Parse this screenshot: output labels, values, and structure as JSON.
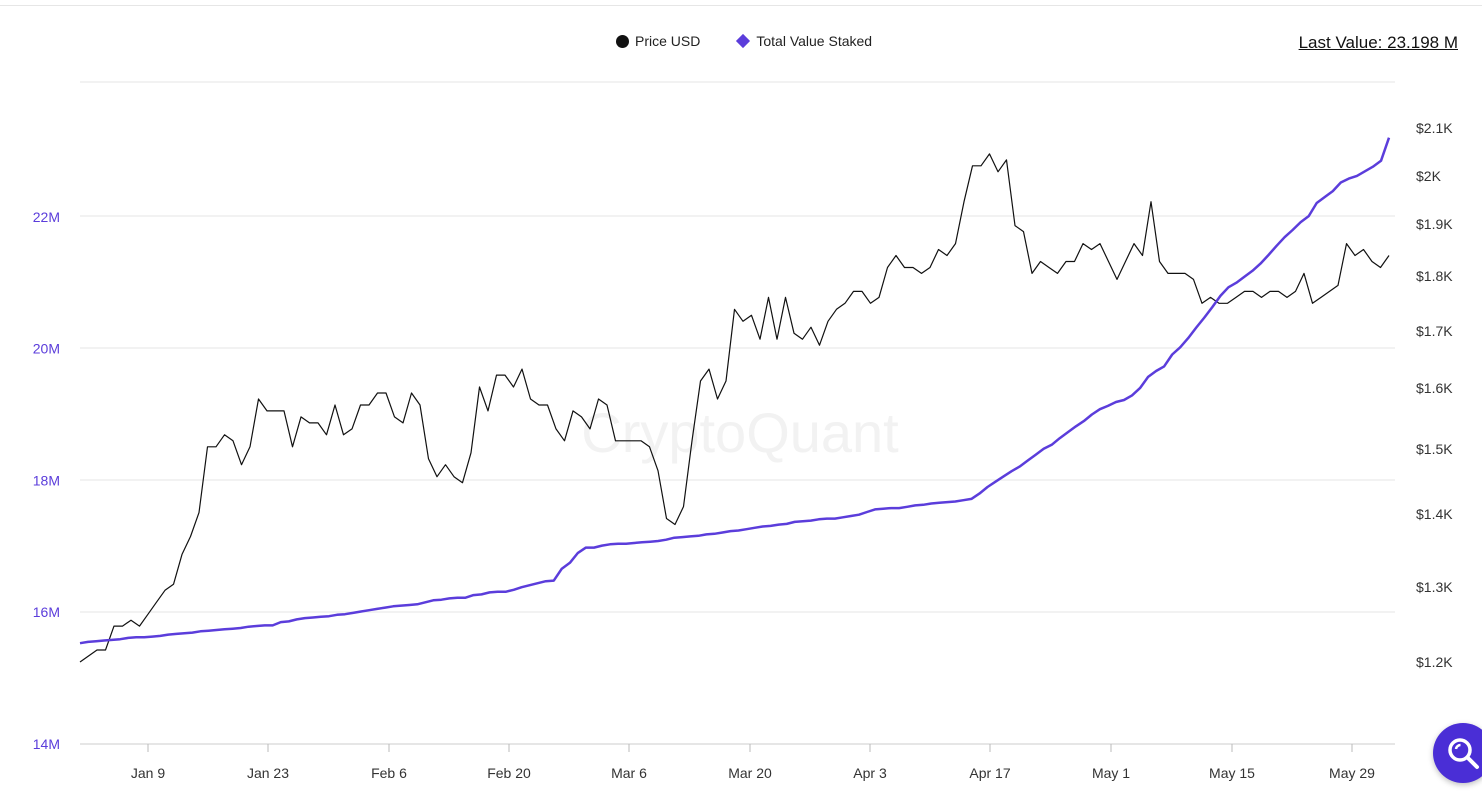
{
  "legend": {
    "price_label": "Price USD",
    "tvs_label": "Total Value Staked"
  },
  "last_value": "Last Value: 23.198 M",
  "watermark": "CryptoQuant",
  "colors": {
    "price": "#111111",
    "tvs": "#5b3ddb",
    "left_axis_text": "#5b3ddb",
    "right_axis_text": "#333333",
    "grid": "#e6e6e6"
  },
  "chart_data": {
    "type": "line",
    "x_ticks": [
      "Jan 9",
      "Jan 23",
      "Feb 6",
      "Feb 20",
      "Mar 6",
      "Mar 20",
      "Apr 3",
      "Apr 17",
      "May 1",
      "May 15",
      "May 29"
    ],
    "y_left_ticks": [
      "14M",
      "16M",
      "18M",
      "20M",
      "22M"
    ],
    "y_right_ticks": [
      "$1.2K",
      "$1.3K",
      "$1.4K",
      "$1.5K",
      "$1.6K",
      "$1.7K",
      "$1.8K",
      "$1.9K",
      "$2K",
      "$2.1K"
    ],
    "y_left_range": [
      14,
      24
    ],
    "y_right_range": [
      1.1,
      2.2
    ],
    "grid": true,
    "legend_position": "top-center",
    "series": [
      {
        "name": "Price USD",
        "axis": "right",
        "values": [
          1.2,
          1.21,
          1.22,
          1.22,
          1.26,
          1.26,
          1.27,
          1.26,
          1.28,
          1.3,
          1.32,
          1.33,
          1.38,
          1.41,
          1.45,
          1.56,
          1.56,
          1.58,
          1.57,
          1.53,
          1.56,
          1.64,
          1.62,
          1.62,
          1.62,
          1.56,
          1.61,
          1.6,
          1.6,
          1.58,
          1.63,
          1.58,
          1.59,
          1.63,
          1.63,
          1.65,
          1.65,
          1.61,
          1.6,
          1.65,
          1.63,
          1.54,
          1.51,
          1.53,
          1.51,
          1.5,
          1.55,
          1.66,
          1.62,
          1.68,
          1.68,
          1.66,
          1.69,
          1.64,
          1.63,
          1.63,
          1.59,
          1.57,
          1.62,
          1.61,
          1.59,
          1.64,
          1.63,
          1.57,
          1.57,
          1.57,
          1.57,
          1.56,
          1.52,
          1.44,
          1.43,
          1.46,
          1.57,
          1.67,
          1.69,
          1.64,
          1.67,
          1.79,
          1.77,
          1.78,
          1.74,
          1.81,
          1.74,
          1.81,
          1.75,
          1.74,
          1.76,
          1.73,
          1.77,
          1.79,
          1.8,
          1.82,
          1.82,
          1.8,
          1.81,
          1.86,
          1.88,
          1.86,
          1.86,
          1.85,
          1.86,
          1.89,
          1.88,
          1.9,
          1.97,
          2.03,
          2.03,
          2.05,
          2.02,
          2.04,
          1.93,
          1.92,
          1.85,
          1.87,
          1.86,
          1.85,
          1.87,
          1.87,
          1.9,
          1.89,
          1.9,
          1.87,
          1.84,
          1.87,
          1.9,
          1.88,
          1.97,
          1.87,
          1.85,
          1.85,
          1.85,
          1.84,
          1.8,
          1.81,
          1.8,
          1.8,
          1.81,
          1.82,
          1.82,
          1.81,
          1.82,
          1.82,
          1.81,
          1.82,
          1.85,
          1.8,
          1.81,
          1.82,
          1.83,
          1.9,
          1.88,
          1.89,
          1.87,
          1.86,
          1.88
        ]
      },
      {
        "name": "Total Value Staked",
        "axis": "left",
        "values": [
          15.53,
          15.55,
          15.56,
          15.57,
          15.58,
          15.59,
          15.61,
          15.62,
          15.62,
          15.63,
          15.64,
          15.66,
          15.67,
          15.68,
          15.69,
          15.71,
          15.72,
          15.73,
          15.74,
          15.75,
          15.76,
          15.78,
          15.79,
          15.8,
          15.8,
          15.85,
          15.86,
          15.89,
          15.91,
          15.92,
          15.93,
          15.94,
          15.96,
          15.97,
          15.99,
          16.01,
          16.03,
          16.05,
          16.07,
          16.09,
          16.1,
          16.11,
          16.12,
          16.15,
          16.18,
          16.19,
          16.21,
          16.22,
          16.22,
          16.26,
          16.27,
          16.3,
          16.31,
          16.31,
          16.34,
          16.38,
          16.41,
          16.44,
          16.47,
          16.48,
          16.66,
          16.75,
          16.9,
          16.98,
          16.98,
          17.01,
          17.03,
          17.04,
          17.04,
          17.05,
          17.06,
          17.07,
          17.08,
          17.1,
          17.13,
          17.14,
          17.15,
          17.16,
          17.18,
          17.19,
          17.21,
          17.23,
          17.24,
          17.26,
          17.28,
          17.3,
          17.31,
          17.33,
          17.34,
          17.37,
          17.38,
          17.39,
          17.41,
          17.42,
          17.42,
          17.44,
          17.46,
          17.48,
          17.52,
          17.56,
          17.57,
          17.58,
          17.58,
          17.6,
          17.62,
          17.63,
          17.65,
          17.66,
          17.67,
          17.68,
          17.7,
          17.72,
          17.8,
          17.9,
          17.98,
          18.06,
          18.14,
          18.21,
          18.3,
          18.39,
          18.48,
          18.54,
          18.64,
          18.73,
          18.82,
          18.9,
          19.0,
          19.08,
          19.13,
          19.19,
          19.22,
          19.29,
          19.4,
          19.57,
          19.66,
          19.73,
          19.91,
          20.02,
          20.16,
          20.32,
          20.47,
          20.63,
          20.8,
          20.93,
          21.0,
          21.09,
          21.18,
          21.29,
          21.42,
          21.56,
          21.69,
          21.8,
          21.92,
          22.01,
          22.21,
          22.3,
          22.39,
          22.52,
          22.58,
          22.62,
          22.69,
          22.76,
          22.85,
          23.2
        ]
      }
    ]
  }
}
